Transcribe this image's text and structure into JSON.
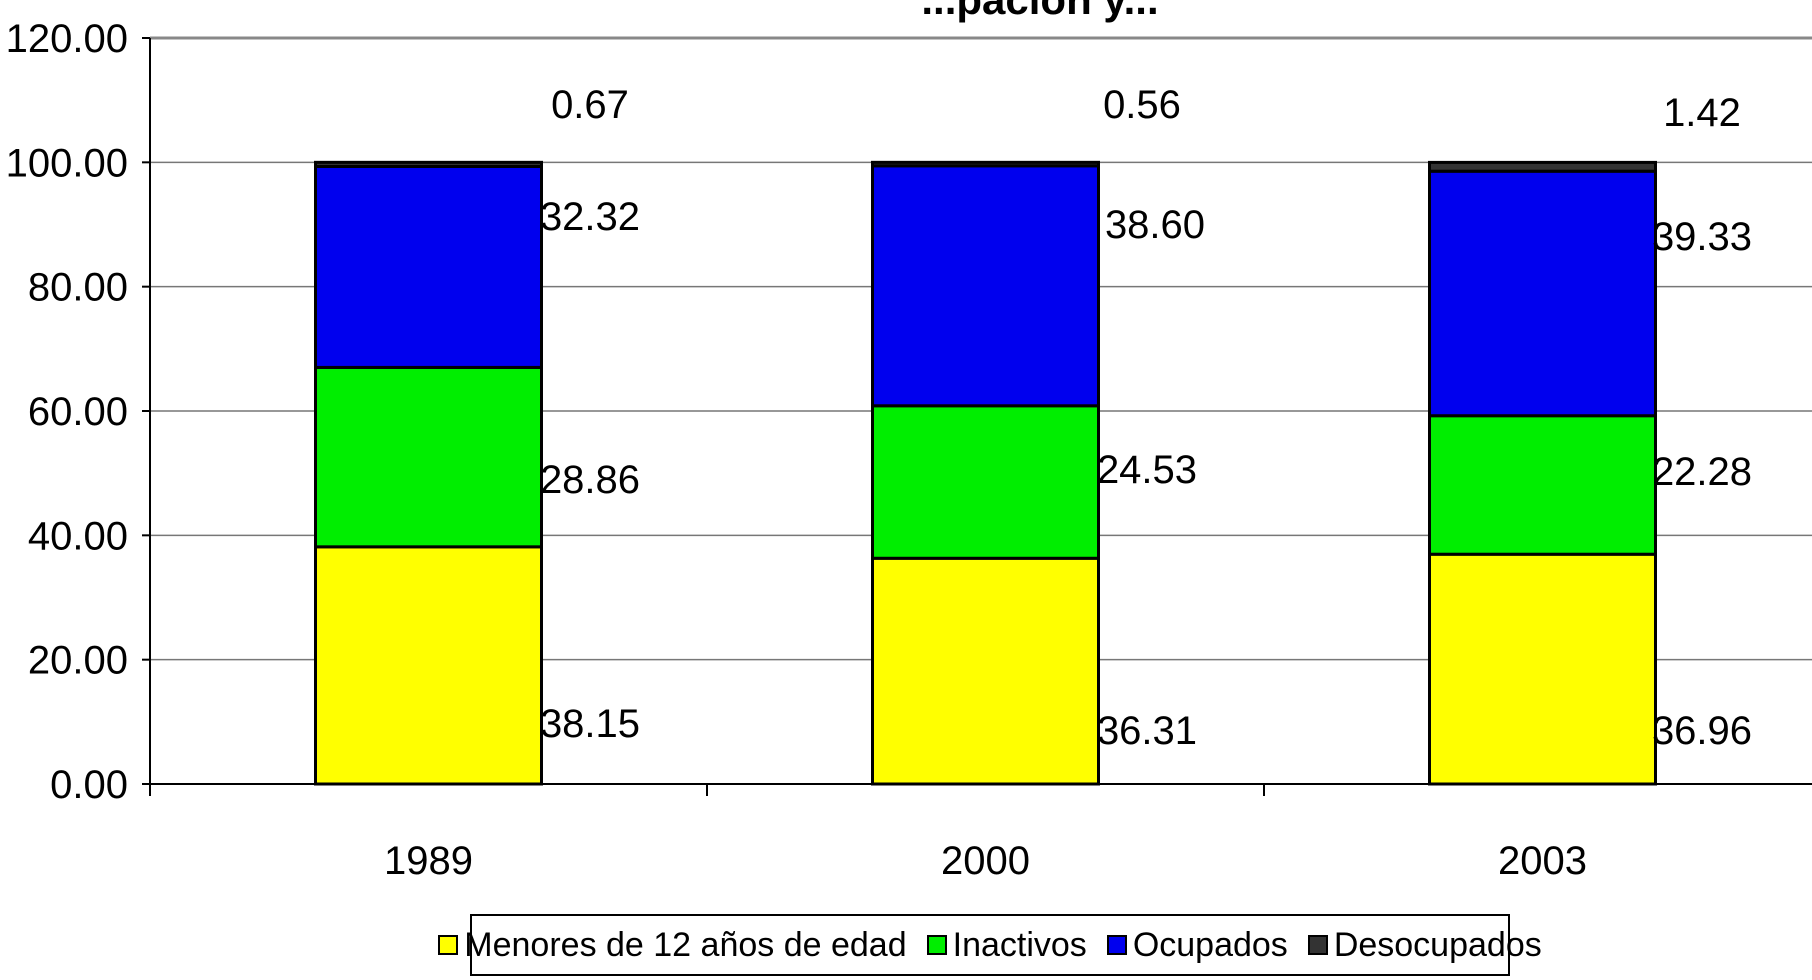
{
  "chart_data": {
    "type": "bar",
    "stacked": true,
    "title": "...pación y...",
    "categories": [
      "1989",
      "2000",
      "2003"
    ],
    "ylim": [
      0,
      120
    ],
    "yticks": [
      0,
      20,
      40,
      60,
      80,
      100,
      120
    ],
    "ytick_labels": [
      "0.00",
      "20.00",
      "40.00",
      "60.00",
      "80.00",
      "100.00",
      "120.00"
    ],
    "grid": true,
    "legend_position": "bottom",
    "series": [
      {
        "name": "Menores de 12 años de edad",
        "color": "#ffff00",
        "values": [
          38.15,
          36.31,
          36.96
        ],
        "labels": [
          "38.15",
          "36.31",
          "36.96"
        ]
      },
      {
        "name": "Inactivos",
        "color": "#00ee00",
        "values": [
          28.86,
          24.53,
          22.28
        ],
        "labels": [
          "28.86",
          "24.53",
          "22.28"
        ]
      },
      {
        "name": "Ocupados",
        "color": "#0000ee",
        "values": [
          32.32,
          38.6,
          39.33
        ],
        "labels": [
          "32.32",
          "38.60",
          "39.33"
        ]
      },
      {
        "name": "Desocupados",
        "color": "#333333",
        "values": [
          0.67,
          0.56,
          1.42
        ],
        "labels": [
          "0.67",
          "0.56",
          "1.42"
        ]
      }
    ]
  }
}
